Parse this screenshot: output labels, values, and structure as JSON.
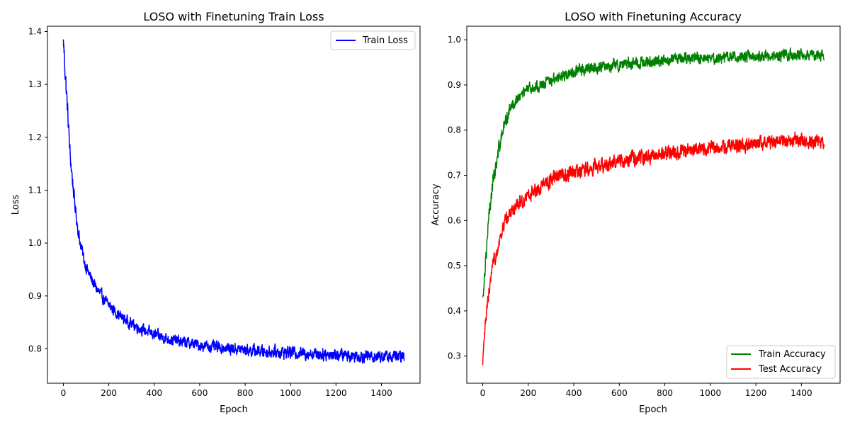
{
  "chart_data": [
    {
      "type": "line",
      "title": "LOSO with Finetuning Train Loss",
      "xlabel": "Epoch",
      "ylabel": "Loss",
      "xlim": [
        -70,
        1570
      ],
      "ylim": [
        0.735,
        1.41
      ],
      "xticks": [
        0,
        200,
        400,
        600,
        800,
        1000,
        1200,
        1400
      ],
      "xtick_labels": [
        "0",
        "200",
        "400",
        "600",
        "800",
        "1000",
        "1200",
        "1400"
      ],
      "yticks": [
        0.8,
        0.9,
        1.0,
        1.1,
        1.2,
        1.3,
        1.4
      ],
      "ytick_labels": [
        "0.8",
        "0.9",
        "1.0",
        "1.1",
        "1.2",
        "1.3",
        "1.4"
      ],
      "grid": false,
      "legend_position": "top-right",
      "series": [
        {
          "name": "Train Loss",
          "color": "#0000ff",
          "x": [
            0,
            10,
            20,
            30,
            40,
            50,
            60,
            70,
            80,
            90,
            100,
            120,
            140,
            160,
            180,
            200,
            225,
            250,
            275,
            300,
            350,
            400,
            450,
            500,
            550,
            600,
            650,
            700,
            750,
            800,
            850,
            900,
            950,
            1000,
            1050,
            1100,
            1150,
            1200,
            1250,
            1300,
            1350,
            1400,
            1450,
            1500
          ],
          "y": [
            1.385,
            1.31,
            1.24,
            1.165,
            1.12,
            1.075,
            1.04,
            1.01,
            0.99,
            0.97,
            0.955,
            0.935,
            0.918,
            0.905,
            0.893,
            0.883,
            0.872,
            0.862,
            0.854,
            0.847,
            0.836,
            0.827,
            0.82,
            0.815,
            0.811,
            0.807,
            0.804,
            0.802,
            0.8,
            0.798,
            0.796,
            0.795,
            0.794,
            0.793,
            0.792,
            0.791,
            0.79,
            0.789,
            0.788,
            0.787,
            0.786,
            0.786,
            0.785,
            0.785
          ],
          "noise": [
            0.02,
            0.02,
            0.018,
            0.016,
            0.014,
            0.012,
            0.012,
            0.012,
            0.011,
            0.011,
            0.011,
            0.011,
            0.011,
            0.011,
            0.01,
            0.01,
            0.01,
            0.01,
            0.01,
            0.01,
            0.01,
            0.01,
            0.01,
            0.01,
            0.01,
            0.01,
            0.01,
            0.01,
            0.01,
            0.01,
            0.011,
            0.011,
            0.011,
            0.011,
            0.011,
            0.011,
            0.011,
            0.011,
            0.011,
            0.011,
            0.011,
            0.011,
            0.011,
            0.011
          ]
        }
      ]
    },
    {
      "type": "line",
      "title": "LOSO with Finetuning Accuracy",
      "xlabel": "Epoch",
      "ylabel": "Accuracy",
      "xlim": [
        -70,
        1570
      ],
      "ylim": [
        0.24,
        1.03
      ],
      "xticks": [
        0,
        200,
        400,
        600,
        800,
        1000,
        1200,
        1400
      ],
      "xtick_labels": [
        "0",
        "200",
        "400",
        "600",
        "800",
        "1000",
        "1200",
        "1400"
      ],
      "yticks": [
        0.3,
        0.4,
        0.5,
        0.6,
        0.7,
        0.8,
        0.9,
        1.0
      ],
      "ytick_labels": [
        "0.3",
        "0.4",
        "0.5",
        "0.6",
        "0.7",
        "0.8",
        "0.9",
        "1.0"
      ],
      "grid": false,
      "legend_position": "bottom-right",
      "series": [
        {
          "name": "Train Accuracy",
          "color": "#008000",
          "x": [
            0,
            10,
            20,
            30,
            40,
            50,
            60,
            80,
            100,
            125,
            150,
            175,
            200,
            250,
            300,
            350,
            400,
            450,
            500,
            600,
            700,
            800,
            900,
            1000,
            1100,
            1200,
            1300,
            1400,
            1500
          ],
          "y": [
            0.43,
            0.5,
            0.56,
            0.62,
            0.67,
            0.7,
            0.73,
            0.78,
            0.82,
            0.85,
            0.87,
            0.88,
            0.89,
            0.9,
            0.91,
            0.92,
            0.93,
            0.935,
            0.94,
            0.945,
            0.95,
            0.955,
            0.958,
            0.96,
            0.962,
            0.963,
            0.965,
            0.966,
            0.966
          ],
          "noise": [
            0.015,
            0.02,
            0.02,
            0.02,
            0.02,
            0.018,
            0.018,
            0.016,
            0.015,
            0.013,
            0.012,
            0.012,
            0.012,
            0.012,
            0.012,
            0.012,
            0.012,
            0.012,
            0.012,
            0.012,
            0.012,
            0.012,
            0.012,
            0.012,
            0.012,
            0.012,
            0.012,
            0.012,
            0.012
          ]
        },
        {
          "name": "Test Accuracy",
          "color": "#ff0000",
          "x": [
            0,
            10,
            20,
            30,
            40,
            50,
            75,
            100,
            125,
            150,
            175,
            200,
            250,
            300,
            350,
            400,
            450,
            500,
            600,
            700,
            800,
            900,
            1000,
            1100,
            1200,
            1300,
            1400,
            1500
          ],
          "y": [
            0.28,
            0.36,
            0.41,
            0.45,
            0.48,
            0.51,
            0.56,
            0.6,
            0.62,
            0.635,
            0.645,
            0.655,
            0.675,
            0.69,
            0.7,
            0.705,
            0.715,
            0.72,
            0.73,
            0.74,
            0.75,
            0.755,
            0.76,
            0.765,
            0.77,
            0.775,
            0.78,
            0.77
          ],
          "noise": [
            0.01,
            0.015,
            0.015,
            0.015,
            0.015,
            0.015,
            0.015,
            0.015,
            0.015,
            0.015,
            0.015,
            0.015,
            0.015,
            0.015,
            0.015,
            0.015,
            0.015,
            0.015,
            0.015,
            0.015,
            0.015,
            0.015,
            0.015,
            0.015,
            0.015,
            0.015,
            0.015,
            0.015
          ]
        }
      ]
    }
  ]
}
